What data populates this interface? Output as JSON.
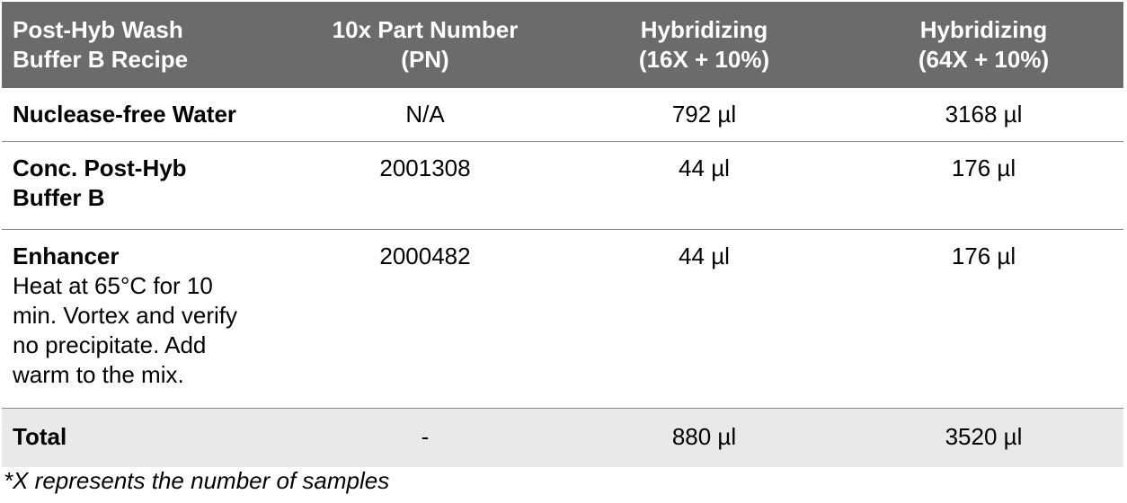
{
  "table": {
    "headers": [
      [
        "Post-Hyb Wash",
        "Buffer B Recipe"
      ],
      [
        "10x Part Number",
        "(PN)"
      ],
      [
        "Hybridizing",
        "(16X + 10%)"
      ],
      [
        "Hybridizing",
        "(64X + 10%)"
      ]
    ],
    "rows": [
      {
        "name_lines": [
          "Nuclease-free Water"
        ],
        "note_lines": [],
        "pn": "N/A",
        "v16": "792 µl",
        "v64": "3168 µl"
      },
      {
        "name_lines": [
          "Conc. Post-Hyb",
          "Buffer B"
        ],
        "note_lines": [],
        "pn": "2001308",
        "v16": "44 µl",
        "v64": "176 µl"
      },
      {
        "name_lines": [
          "Enhancer"
        ],
        "note_lines": [
          "Heat at 65°C for 10",
          "min. Vortex and verify",
          "no precipitate. Add",
          "warm to the mix."
        ],
        "pn": "2000482",
        "v16": "44 µl",
        "v64": "176 µl"
      }
    ],
    "total": {
      "label": "Total",
      "pn": "-",
      "v16": "880 µl",
      "v64": "3520 µl"
    }
  },
  "footnote": "*X represents the number of samples",
  "colors": {
    "header_bg": "#6b6b6b",
    "header_text": "#ffffff",
    "total_bg": "#e9e9e9",
    "row_divider": "#8a8a8a"
  }
}
